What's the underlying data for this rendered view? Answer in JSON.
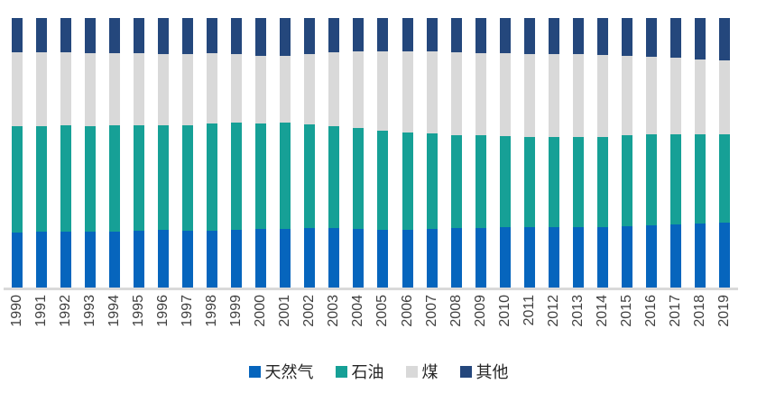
{
  "chart": {
    "background_color": "#ffffff",
    "axis_line_color": "#d9d9d9",
    "xlabel_color": "#404040",
    "legend_text_color": "#262626"
  },
  "chart_data": {
    "type": "bar",
    "stacked": true,
    "percent_stacked": true,
    "title": "",
    "xlabel": "",
    "ylabel": "",
    "ylim": [
      0,
      100
    ],
    "grid": false,
    "legend_position": "bottom",
    "categories": [
      "1990",
      "1991",
      "1992",
      "1993",
      "1994",
      "1995",
      "1996",
      "1997",
      "1998",
      "1999",
      "2000",
      "2001",
      "2002",
      "2003",
      "2004",
      "2005",
      "2006",
      "2007",
      "2008",
      "2009",
      "2010",
      "2011",
      "2012",
      "2013",
      "2014",
      "2015",
      "2016",
      "2017",
      "2018",
      "2019"
    ],
    "series": [
      {
        "key": "natural-gas",
        "name": "天然气",
        "color": "#0665BD",
        "values": [
          20.6,
          20.9,
          21.1,
          20.9,
          21.1,
          21.3,
          21.7,
          21.3,
          21.3,
          21.7,
          21.9,
          21.9,
          22.4,
          22.2,
          22.0,
          21.7,
          21.7,
          21.9,
          22.2,
          22.2,
          22.7,
          22.7,
          22.8,
          22.8,
          22.6,
          23.1,
          23.3,
          23.7,
          24.1,
          24.2
        ]
      },
      {
        "key": "oil",
        "name": "石油",
        "color": "#16A096",
        "values": [
          39.4,
          39.1,
          39.4,
          39.2,
          39.4,
          38.9,
          38.6,
          39.2,
          39.8,
          39.7,
          39.2,
          39.4,
          38.3,
          37.8,
          37.2,
          36.7,
          36.1,
          35.5,
          34.4,
          34.4,
          33.6,
          33.2,
          33.3,
          33.3,
          33.5,
          33.6,
          33.6,
          33.3,
          32.8,
          32.9
        ]
      },
      {
        "key": "coal",
        "name": "煤",
        "color": "#D9D9D9",
        "values": [
          27.2,
          27.2,
          27.0,
          26.8,
          26.4,
          26.7,
          26.4,
          26.2,
          25.8,
          25.3,
          25.0,
          24.8,
          26.0,
          27.2,
          28.4,
          29.2,
          29.8,
          30.2,
          30.6,
          30.3,
          30.6,
          30.8,
          30.5,
          30.6,
          30.3,
          29.2,
          28.7,
          28.2,
          27.9,
          27.3
        ]
      },
      {
        "key": "other",
        "name": "其他",
        "color": "#24477C",
        "values": [
          12.8,
          12.8,
          12.5,
          13.1,
          13.1,
          13.1,
          13.3,
          13.3,
          13.1,
          13.3,
          13.9,
          13.9,
          13.3,
          12.8,
          12.4,
          12.4,
          12.4,
          12.4,
          12.8,
          13.1,
          13.1,
          13.3,
          13.4,
          13.3,
          13.6,
          14.1,
          14.4,
          14.8,
          15.2,
          15.6
        ]
      }
    ]
  }
}
